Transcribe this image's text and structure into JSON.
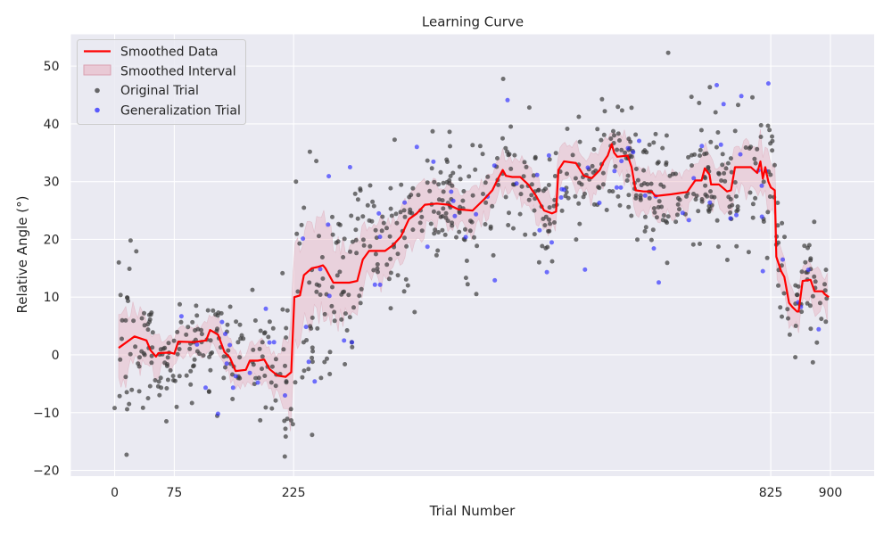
{
  "chart_data": {
    "type": "scatter",
    "title": "Learning Curve",
    "xlabel": "Trial Number",
    "ylabel": "Relative Angle (°)",
    "xlim": [
      -55,
      955
    ],
    "ylim": [
      -21,
      55.5
    ],
    "xticks": [
      0,
      75,
      225,
      825,
      900
    ],
    "yticks": [
      -20,
      -10,
      0,
      10,
      20,
      30,
      40,
      50
    ],
    "grid": true,
    "legend_position": "upper-left",
    "colors": {
      "background": "#eaeaf2",
      "grid": "#ffffff",
      "smoothed": "#ff0000",
      "interval": "#e8b3c2",
      "original": "#3a3a3a",
      "generalization": "#2a2aff"
    },
    "series": [
      {
        "name": "Smoothed Data",
        "kind": "line"
      },
      {
        "name": "Smoothed Interval",
        "kind": "band"
      },
      {
        "name": "Original Trial",
        "kind": "points"
      },
      {
        "name": "Generalization Trial",
        "kind": "points"
      }
    ],
    "smoothed_anchors": [
      [
        5,
        1.2
      ],
      [
        25,
        3.2
      ],
      [
        40,
        2.5
      ],
      [
        45,
        0.8
      ],
      [
        52,
        -0.3
      ],
      [
        55,
        0.3
      ],
      [
        70,
        0.4
      ],
      [
        75,
        0.2
      ],
      [
        80,
        2.3
      ],
      [
        100,
        2.2
      ],
      [
        115,
        2.5
      ],
      [
        120,
        4.3
      ],
      [
        130,
        3.5
      ],
      [
        138,
        0.5
      ],
      [
        145,
        -0.5
      ],
      [
        152,
        -2.8
      ],
      [
        165,
        -2.6
      ],
      [
        170,
        -1.0
      ],
      [
        180,
        -1.0
      ],
      [
        188,
        -0.8
      ],
      [
        195,
        -2.5
      ],
      [
        205,
        -3.6
      ],
      [
        215,
        -3.8
      ],
      [
        222,
        -3.0
      ],
      [
        226,
        10.0
      ],
      [
        233,
        10.3
      ],
      [
        238,
        13.8
      ],
      [
        248,
        15.0
      ],
      [
        255,
        15.2
      ],
      [
        262,
        15.5
      ],
      [
        265,
        15.0
      ],
      [
        275,
        12.5
      ],
      [
        295,
        12.5
      ],
      [
        305,
        12.8
      ],
      [
        312,
        16.5
      ],
      [
        320,
        18.0
      ],
      [
        340,
        18.0
      ],
      [
        350,
        19.0
      ],
      [
        360,
        20.5
      ],
      [
        370,
        23.5
      ],
      [
        380,
        24.5
      ],
      [
        390,
        26.0
      ],
      [
        405,
        26.2
      ],
      [
        420,
        26.0
      ],
      [
        432,
        25.2
      ],
      [
        450,
        25.0
      ],
      [
        465,
        27.0
      ],
      [
        475,
        28.5
      ],
      [
        482,
        30.5
      ],
      [
        488,
        32.0
      ],
      [
        492,
        31.0
      ],
      [
        500,
        30.8
      ],
      [
        510,
        30.8
      ],
      [
        520,
        29.5
      ],
      [
        530,
        27.5
      ],
      [
        540,
        25.0
      ],
      [
        550,
        24.5
      ],
      [
        555,
        24.8
      ],
      [
        558,
        32.0
      ],
      [
        565,
        33.5
      ],
      [
        580,
        33.2
      ],
      [
        590,
        31.0
      ],
      [
        600,
        30.6
      ],
      [
        610,
        32.0
      ],
      [
        615,
        33.5
      ],
      [
        620,
        34.5
      ],
      [
        625,
        36.5
      ],
      [
        628,
        35.0
      ],
      [
        632,
        34.3
      ],
      [
        645,
        34.5
      ],
      [
        650,
        32.5
      ],
      [
        655,
        28.5
      ],
      [
        665,
        28.3
      ],
      [
        675,
        28.3
      ],
      [
        680,
        27.5
      ],
      [
        700,
        27.8
      ],
      [
        720,
        28.2
      ],
      [
        730,
        30.2
      ],
      [
        738,
        30.2
      ],
      [
        742,
        32.3
      ],
      [
        748,
        31.2
      ],
      [
        750,
        29.5
      ],
      [
        760,
        29.5
      ],
      [
        770,
        28.3
      ],
      [
        775,
        28.5
      ],
      [
        780,
        32.5
      ],
      [
        800,
        32.5
      ],
      [
        808,
        31.5
      ],
      [
        812,
        33.5
      ],
      [
        815,
        30.5
      ],
      [
        818,
        32.5
      ],
      [
        822,
        30.0
      ],
      [
        825,
        29.0
      ],
      [
        830,
        28.5
      ],
      [
        832,
        17.0
      ],
      [
        838,
        14.5
      ],
      [
        842,
        13.5
      ],
      [
        848,
        9.0
      ],
      [
        852,
        8.3
      ],
      [
        858,
        7.5
      ],
      [
        860,
        7.5
      ],
      [
        865,
        12.8
      ],
      [
        875,
        13.0
      ],
      [
        880,
        11.0
      ],
      [
        890,
        11.0
      ],
      [
        893,
        10.5
      ],
      [
        898,
        10.0
      ]
    ],
    "interval_half_width_anchors": [
      [
        5,
        5.5
      ],
      [
        30,
        4.5
      ],
      [
        60,
        2.5
      ],
      [
        100,
        2.5
      ],
      [
        140,
        3.0
      ],
      [
        200,
        3.0
      ],
      [
        226,
        8.5
      ],
      [
        260,
        8.0
      ],
      [
        300,
        6.0
      ],
      [
        350,
        4.5
      ],
      [
        400,
        3.5
      ],
      [
        500,
        3.0
      ],
      [
        600,
        3.5
      ],
      [
        700,
        3.5
      ],
      [
        800,
        4.0
      ],
      [
        826,
        5.0
      ],
      [
        850,
        3.0
      ],
      [
        898,
        3.5
      ]
    ],
    "original_trial_count": 760,
    "generalization_trial_count": 75,
    "notable_points": [
      [
        0,
        -9.2
      ],
      [
        15,
        -17.3
      ],
      [
        20,
        19.8
      ],
      [
        65,
        -11.5
      ],
      [
        214,
        -17.6
      ],
      [
        224,
        -12.0
      ],
      [
        228,
        30.0
      ],
      [
        696,
        52.3
      ],
      [
        878,
        -1.3
      ]
    ],
    "notable_generalization_points": [
      [
        757,
        46.7
      ],
      [
        822,
        47.0
      ],
      [
        788,
        44.8
      ],
      [
        494,
        44.1
      ],
      [
        130,
        -10.2
      ],
      [
        135,
        5.7
      ],
      [
        244,
        -1.2
      ],
      [
        270,
        10.2
      ],
      [
        296,
        32.5
      ],
      [
        380,
        36.0
      ],
      [
        478,
        12.9
      ],
      [
        815,
        14.5
      ],
      [
        565,
        28.6
      ],
      [
        840,
        16.5
      ],
      [
        180,
        -4.8
      ]
    ]
  }
}
